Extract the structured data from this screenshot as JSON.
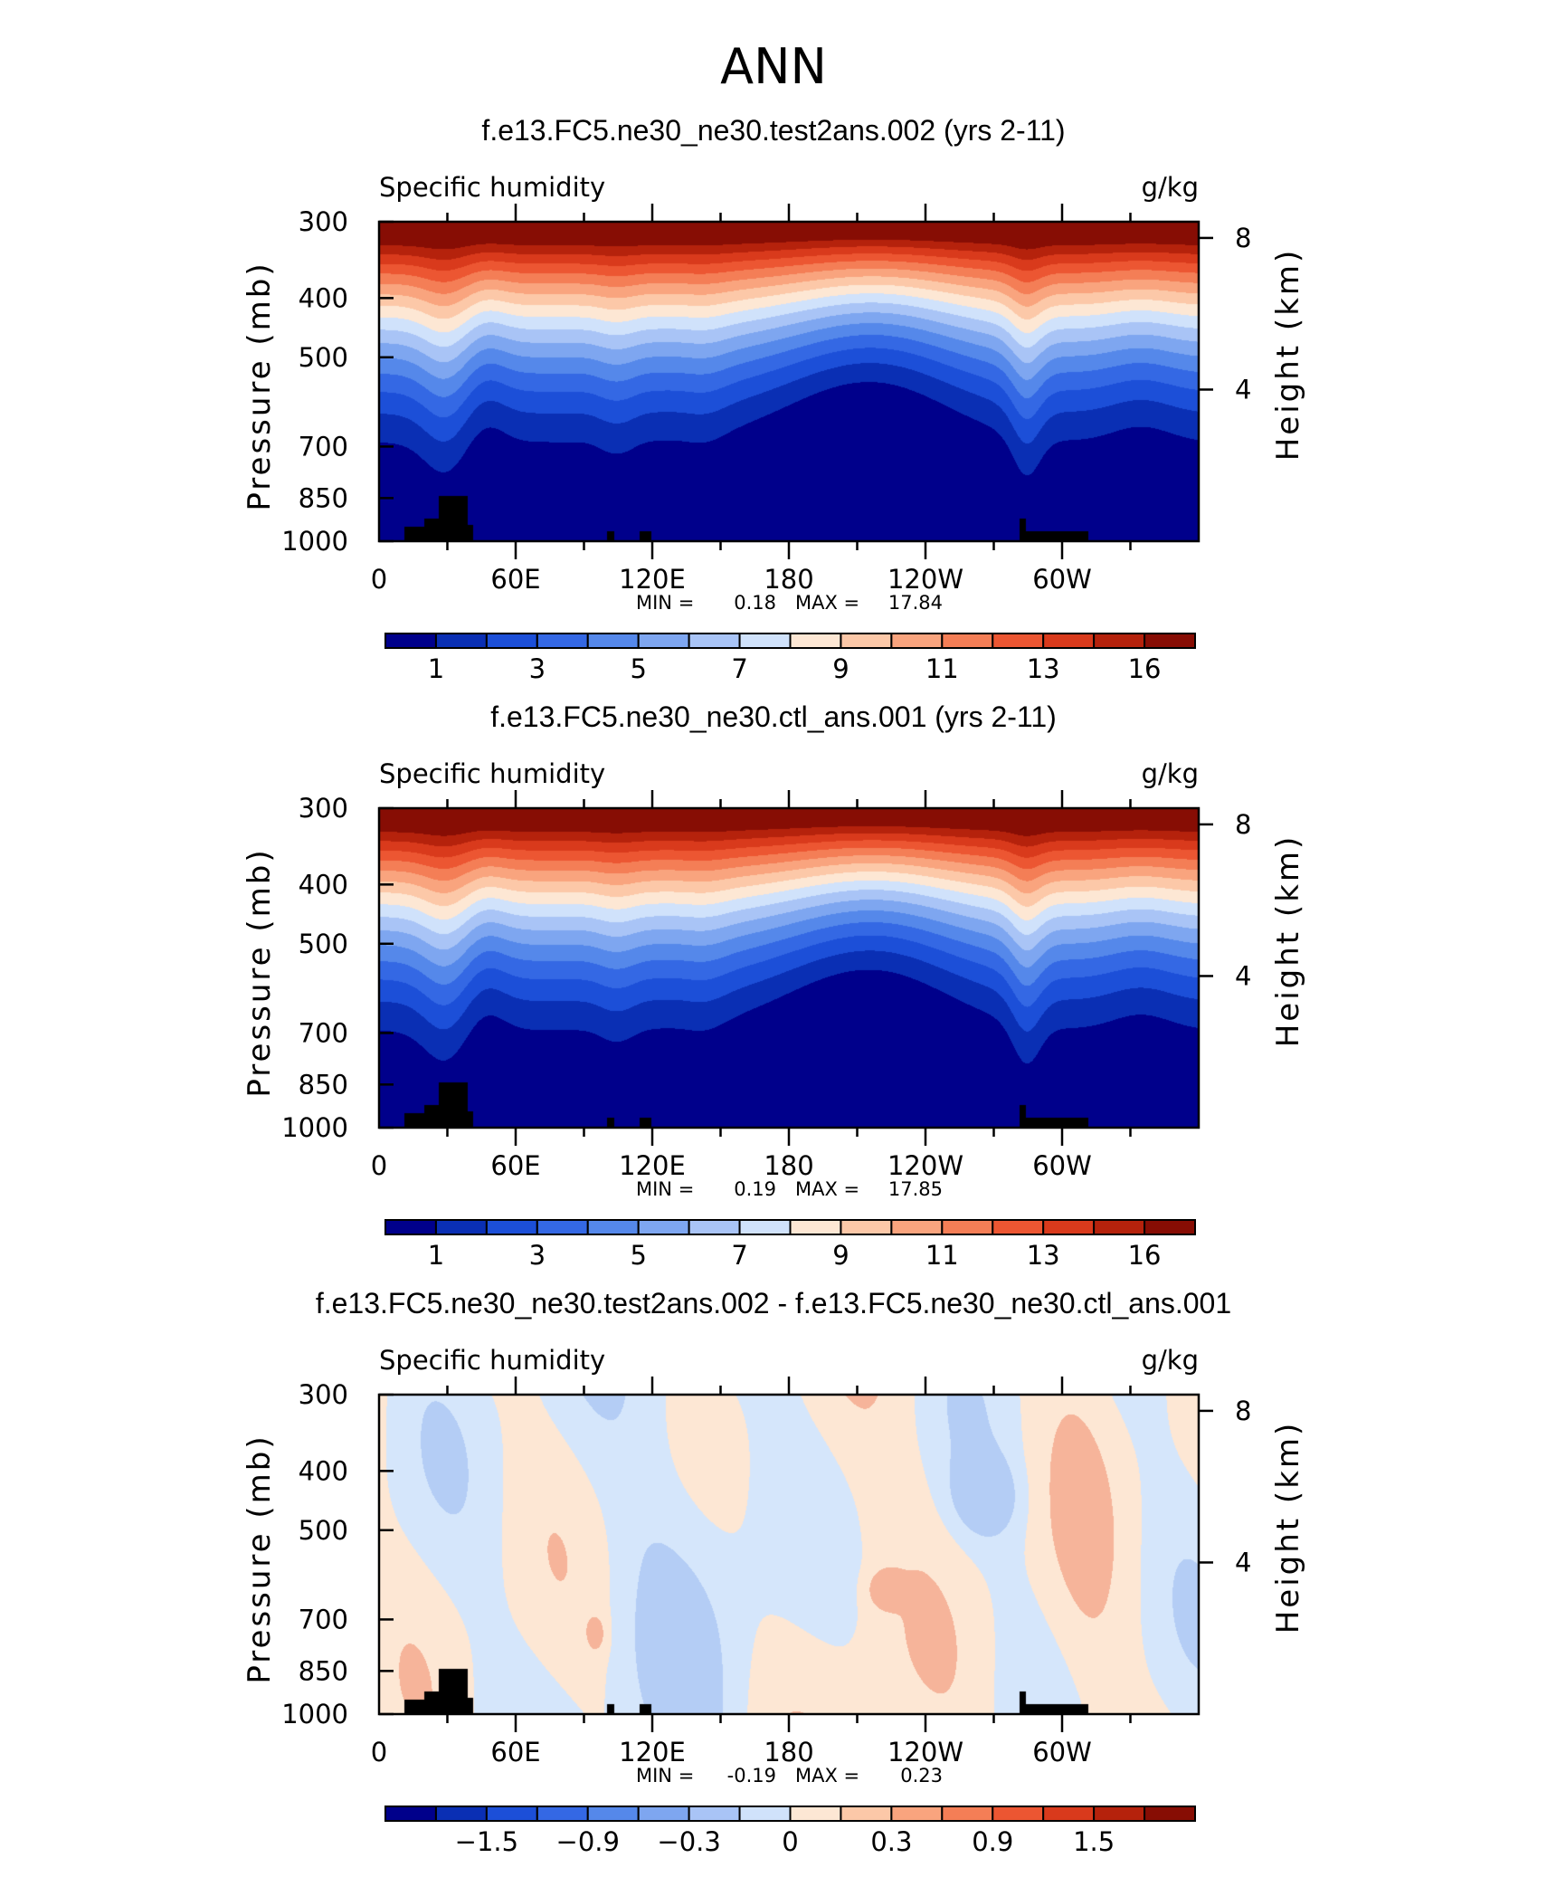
{
  "figure_title": "ANN",
  "chart_data": [
    {
      "type": "heatmap",
      "title": "f.e13.FC5.ne30_ne30.test2ans.002 (yrs 2-11)",
      "left_label": "Specific humidity",
      "right_label": "g/kg",
      "ylabel": "Pressure (mb)",
      "ylabel_right": "Height (km)",
      "yticks": [
        "300",
        "400",
        "500",
        "700",
        "850",
        "1000"
      ],
      "yticks_right": [
        "8",
        "4"
      ],
      "xticks": [
        "0",
        "60E",
        "120E",
        "180",
        "120W",
        "60W"
      ],
      "min_label": "MIN =",
      "min_value": "0.18",
      "max_label": "MAX =",
      "max_value": "17.84",
      "colorbar_labels": [
        "1",
        "3",
        "5",
        "7",
        "9",
        "11",
        "13",
        "16"
      ],
      "field": "humidity"
    },
    {
      "type": "heatmap",
      "title": "f.e13.FC5.ne30_ne30.ctl_ans.001 (yrs 2-11)",
      "left_label": "Specific humidity",
      "right_label": "g/kg",
      "ylabel": "Pressure (mb)",
      "ylabel_right": "Height (km)",
      "yticks": [
        "300",
        "400",
        "500",
        "700",
        "850",
        "1000"
      ],
      "yticks_right": [
        "8",
        "4"
      ],
      "xticks": [
        "0",
        "60E",
        "120E",
        "180",
        "120W",
        "60W"
      ],
      "min_label": "MIN =",
      "min_value": "0.19",
      "max_label": "MAX =",
      "max_value": "17.85",
      "colorbar_labels": [
        "1",
        "3",
        "5",
        "7",
        "9",
        "11",
        "13",
        "16"
      ],
      "field": "humidity"
    },
    {
      "type": "heatmap",
      "title": "f.e13.FC5.ne30_ne30.test2ans.002 - f.e13.FC5.ne30_ne30.ctl_ans.001",
      "left_label": "Specific humidity",
      "right_label": "g/kg",
      "ylabel": "Pressure (mb)",
      "ylabel_right": "Height (km)",
      "yticks": [
        "300",
        "400",
        "500",
        "700",
        "850",
        "1000"
      ],
      "yticks_right": [
        "8",
        "4"
      ],
      "xticks": [
        "0",
        "60E",
        "120E",
        "180",
        "120W",
        "60W"
      ],
      "min_label": "MIN =",
      "min_value": "-0.19",
      "max_label": "MAX =",
      "max_value": "0.23",
      "colorbar_labels": [
        "-1.5",
        "-0.9",
        "-0.3",
        "0",
        "0.3",
        "0.9",
        "1.5"
      ],
      "field": "difference"
    }
  ],
  "colormap": [
    "#00008b",
    "#0a2fb4",
    "#1c4fd8",
    "#3468e4",
    "#5588ea",
    "#7ea6f0",
    "#a9c4f6",
    "#d0e2fb",
    "#fde7d4",
    "#fcc8a8",
    "#f9a47e",
    "#f47e56",
    "#ec5632",
    "#d93a1c",
    "#b5220c",
    "#870d04"
  ]
}
